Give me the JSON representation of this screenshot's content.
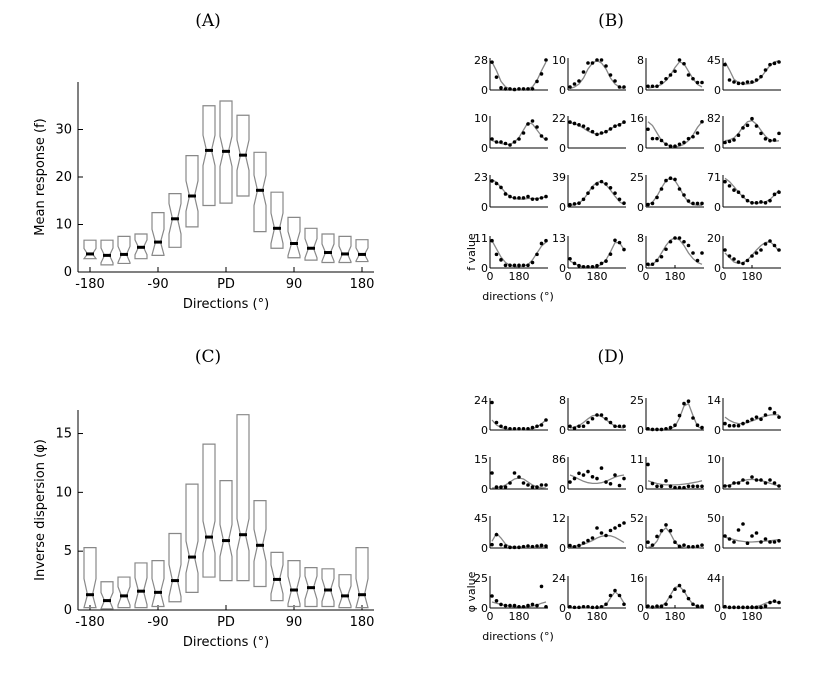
{
  "panels": {
    "A": {
      "label": "(A)",
      "ylabel": "Mean response (f)",
      "xlabel": "Directions (°)",
      "yticks": [
        "0",
        "10",
        "20",
        "30"
      ],
      "ylim": [
        0,
        40
      ]
    },
    "B": {
      "label": "(B)",
      "ylabel": "f value",
      "xlabel": "directions (°)"
    },
    "C": {
      "label": "(C)",
      "ylabel": "Inverse dispersion (φ)",
      "xlabel": "Directions (°)",
      "yticks": [
        "0",
        "5",
        "10",
        "15"
      ],
      "ylim": [
        0,
        17
      ]
    },
    "D": {
      "label": "(D)",
      "ylabel": "φ value",
      "xlabel": "directions (°)"
    }
  },
  "xticks": [
    "-180",
    "-90",
    "PD",
    "90",
    "180"
  ],
  "small_xticks": [
    "0",
    "180"
  ],
  "chart_data": [
    {
      "type": "box",
      "panel": "A",
      "ylabel": "Mean response (f)",
      "xlabel": "Directions (°)",
      "categories": [
        -180,
        -157.5,
        -135,
        -112.5,
        -90,
        -67.5,
        -45,
        -22.5,
        0,
        22.5,
        45,
        67.5,
        90,
        112.5,
        135,
        157.5,
        180
      ],
      "ylim": [
        0,
        40
      ],
      "medians": [
        3.8,
        3.5,
        3.7,
        5.2,
        6.3,
        11.2,
        16.0,
        25.6,
        25.4,
        24.6,
        17.2,
        9.2,
        6.0,
        5.0,
        4.1,
        3.8,
        3.7
      ],
      "q1": [
        2.8,
        1.5,
        1.8,
        2.8,
        3.5,
        5.2,
        9.5,
        14.0,
        14.5,
        16.0,
        8.5,
        5.0,
        3.0,
        2.5,
        2.0,
        2.0,
        2.2
      ],
      "q3": [
        6.7,
        6.7,
        7.5,
        8.0,
        12.5,
        16.5,
        24.5,
        35.0,
        36.0,
        33.0,
        25.2,
        16.8,
        11.5,
        9.2,
        8.0,
        7.5,
        6.8
      ]
    },
    {
      "type": "box",
      "panel": "C",
      "ylabel": "Inverse dispersion (φ)",
      "xlabel": "Directions (°)",
      "categories": [
        -180,
        -157.5,
        -135,
        -112.5,
        -90,
        -67.5,
        -45,
        -22.5,
        0,
        22.5,
        45,
        67.5,
        90,
        112.5,
        135,
        157.5,
        180
      ],
      "ylim": [
        0,
        17
      ],
      "medians": [
        1.3,
        0.8,
        1.2,
        1.6,
        1.5,
        2.5,
        4.5,
        6.2,
        5.9,
        6.4,
        5.5,
        2.6,
        1.7,
        1.9,
        1.7,
        1.2,
        1.3
      ],
      "q1": [
        0.2,
        0.1,
        0.2,
        0.2,
        0.3,
        0.7,
        1.5,
        2.8,
        2.5,
        2.5,
        2.0,
        0.8,
        0.3,
        0.3,
        0.3,
        0.2,
        0.2
      ],
      "q3": [
        5.3,
        2.4,
        2.8,
        4.0,
        4.2,
        6.5,
        10.7,
        14.1,
        11.0,
        16.6,
        9.3,
        4.9,
        4.2,
        3.6,
        3.5,
        3.0,
        5.3
      ]
    },
    {
      "type": "scatter",
      "panel": "B",
      "xlabel": "directions (°)",
      "ylabel": "f value",
      "xticks": [
        "0",
        "180"
      ],
      "subplots": [
        {
          "ymax": 28,
          "y": [
            26,
            12,
            2,
            1,
            1,
            0.5,
            1,
            1,
            1,
            1,
            8,
            15,
            28
          ],
          "fit": [
            26,
            18,
            8,
            3,
            1,
            0.5,
            0.5,
            0.5,
            1,
            3,
            9,
            18,
            26
          ]
        },
        {
          "ymax": 10,
          "y": [
            1,
            2,
            3,
            6,
            9,
            9,
            10,
            10,
            8,
            5,
            3,
            1,
            1
          ],
          "fit": [
            0.5,
            1,
            2,
            4,
            7,
            9,
            9.8,
            9,
            7,
            4,
            2,
            1,
            0.5
          ]
        },
        {
          "ymax": 8,
          "y": [
            1,
            1,
            1,
            2,
            3,
            4,
            5,
            8,
            7,
            4,
            3,
            2,
            2
          ],
          "fit": [
            0.5,
            0.7,
            1,
            1.5,
            2.5,
            4,
            6,
            7.5,
            7,
            5,
            3,
            1.5,
            0.8
          ]
        },
        {
          "ymax": 45,
          "y": [
            38,
            15,
            12,
            10,
            10,
            12,
            12,
            15,
            20,
            30,
            38,
            40,
            42
          ],
          "fit": [
            42,
            30,
            16,
            11,
            9,
            9,
            10,
            13,
            19,
            28,
            37,
            42,
            44
          ]
        },
        {
          "ymax": 10,
          "y": [
            3,
            2,
            2,
            1.5,
            1,
            2,
            3,
            5,
            8,
            9,
            7,
            4,
            3
          ],
          "fit": [
            2.5,
            2,
            1.5,
            1.2,
            1.2,
            2,
            3.5,
            6,
            8.5,
            8,
            6,
            4,
            2.5
          ]
        },
        {
          "ymax": 22,
          "y": [
            19,
            18,
            17,
            16,
            14,
            12,
            10,
            11,
            12,
            14,
            16,
            17,
            19
          ],
          "fit": [
            18.5,
            18,
            16.5,
            14.5,
            12.5,
            11,
            10,
            10.5,
            12,
            14,
            16,
            17.5,
            18.5
          ]
        },
        {
          "ymax": 16,
          "y": [
            10,
            5,
            5,
            4,
            2,
            1,
            1,
            2,
            3,
            5,
            6,
            8,
            14
          ],
          "fit": [
            14,
            12,
            8,
            4,
            2,
            1,
            0.5,
            1,
            2,
            4,
            7,
            11,
            14
          ]
        },
        {
          "ymax": 82,
          "y": [
            15,
            18,
            22,
            35,
            55,
            62,
            80,
            60,
            40,
            25,
            20,
            22,
            40
          ],
          "fit": [
            20,
            22,
            28,
            40,
            58,
            72,
            75,
            65,
            48,
            32,
            22,
            18,
            20
          ]
        },
        {
          "ymax": 23,
          "y": [
            20,
            18,
            15,
            10,
            8,
            7,
            7,
            7,
            8,
            6,
            6,
            7,
            8
          ],
          "fit": [
            21,
            19,
            15,
            11,
            8,
            6.5,
            6,
            6,
            6.5,
            6.5,
            6.5,
            7,
            8
          ]
        },
        {
          "ymax": 39,
          "y": [
            3,
            4,
            5,
            10,
            18,
            25,
            30,
            33,
            30,
            25,
            18,
            10,
            5
          ],
          "fit": [
            2,
            3,
            5,
            10,
            18,
            27,
            32,
            33,
            29,
            22,
            14,
            7,
            3
          ]
        },
        {
          "ymax": 25,
          "y": [
            2,
            3,
            8,
            15,
            22,
            24,
            23,
            15,
            10,
            5,
            3,
            3,
            3
          ],
          "fit": [
            2,
            4,
            9,
            16,
            22,
            24.5,
            22,
            16,
            9,
            4,
            2,
            1.5,
            1.5
          ]
        },
        {
          "ymax": 71,
          "y": [
            60,
            50,
            40,
            35,
            25,
            15,
            10,
            10,
            12,
            10,
            15,
            30,
            35
          ],
          "fit": [
            68,
            60,
            48,
            35,
            24,
            15,
            10,
            9,
            10,
            12,
            18,
            28,
            40
          ]
        },
        {
          "ymax": 11,
          "y": [
            10,
            5,
            3,
            1,
            1,
            1,
            1,
            1,
            1,
            2,
            5,
            9,
            10
          ],
          "fit": [
            10,
            7,
            4,
            2,
            1,
            0.5,
            0.5,
            0.7,
            1.2,
            3,
            5.5,
            8,
            9.5
          ]
        },
        {
          "ymax": 13,
          "y": [
            4,
            2,
            1,
            0.5,
            0.5,
            0.5,
            1,
            2,
            3,
            6,
            12,
            11,
            8
          ],
          "fit": [
            3,
            2,
            1,
            0.5,
            0.3,
            0.3,
            0.6,
            1.5,
            3.5,
            7,
            11,
            11,
            8
          ]
        },
        {
          "ymax": 8,
          "y": [
            1,
            1,
            2,
            3,
            5,
            7,
            8,
            8,
            7,
            6,
            4,
            2,
            4
          ],
          "fit": [
            0.5,
            1,
            2,
            4,
            6,
            7.5,
            8,
            7.5,
            6,
            4,
            2.5,
            1.5,
            1
          ]
        },
        {
          "ymax": 20,
          "y": [
            12,
            8,
            6,
            4,
            3,
            5,
            8,
            10,
            12,
            16,
            18,
            15,
            12
          ],
          "fit": [
            10,
            7,
            4,
            3,
            3.5,
            5.5,
            8.5,
            12,
            15,
            17,
            17.5,
            15,
            11
          ]
        }
      ]
    },
    {
      "type": "scatter",
      "panel": "D",
      "xlabel": "directions (°)",
      "ylabel": "φ value",
      "xticks": [
        "0",
        "180"
      ],
      "subplots": [
        {
          "ymax": 24,
          "y": [
            22,
            6,
            3,
            2,
            1,
            1,
            1,
            1,
            1,
            2,
            3,
            4,
            8
          ],
          "fit": [
            8,
            4,
            2,
            1,
            0.5,
            0.3,
            0.3,
            0.3,
            0.5,
            1,
            2.5,
            5,
            8
          ]
        },
        {
          "ymax": 8,
          "y": [
            1,
            0.5,
            1,
            1,
            2,
            3,
            4,
            4,
            3,
            2,
            1,
            1,
            1
          ],
          "fit": [
            0.5,
            0.8,
            1.2,
            2,
            3,
            3.8,
            4,
            3.6,
            2.8,
            1.8,
            1.1,
            0.7,
            0.5
          ]
        },
        {
          "ymax": 25,
          "y": [
            1,
            0.5,
            0.5,
            0.5,
            1,
            2,
            4,
            12,
            22,
            24,
            10,
            4,
            2
          ],
          "fit": [
            0.5,
            0.5,
            0.5,
            0.5,
            0.5,
            1,
            3,
            10,
            20,
            22,
            12,
            3,
            1
          ]
        },
        {
          "ymax": 14,
          "y": [
            3,
            2,
            2,
            2,
            3,
            4,
            5,
            6,
            5,
            7,
            10,
            8,
            6
          ],
          "fit": [
            6,
            4.5,
            3.5,
            3,
            3,
            3.5,
            4.2,
            5,
            5.8,
            6.5,
            7,
            7.2,
            7
          ]
        },
        {
          "ymax": 15,
          "y": [
            8,
            1,
            1,
            1,
            3,
            8,
            6,
            3,
            2,
            1,
            1,
            2,
            2
          ],
          "fit": [
            0.5,
            0.7,
            1,
            2,
            3.5,
            5,
            5.5,
            5,
            3.5,
            2,
            1,
            0.6,
            0.4
          ]
        },
        {
          "ymax": 86,
          "y": [
            20,
            30,
            45,
            40,
            50,
            35,
            30,
            60,
            20,
            15,
            40,
            10,
            30
          ],
          "fit": [
            40,
            35,
            28,
            22,
            18,
            16,
            16,
            18,
            22,
            28,
            34,
            38,
            40
          ]
        },
        {
          "ymax": 11,
          "y": [
            9,
            2,
            1,
            1,
            3,
            1,
            0.5,
            0.5,
            0.5,
            1,
            1,
            1,
            1
          ],
          "fit": [
            3,
            2.5,
            2,
            1.7,
            1.5,
            1.5,
            1.5,
            1.6,
            1.8,
            2,
            2.3,
            2.6,
            3
          ]
        },
        {
          "ymax": 10,
          "y": [
            1,
            1,
            2,
            2,
            3,
            2,
            4,
            3,
            3,
            2,
            3,
            2,
            1
          ],
          "fit": [
            1,
            1.3,
            1.8,
            2.3,
            2.8,
            3.1,
            3.2,
            3.1,
            2.8,
            2.4,
            1.9,
            1.4,
            1
          ]
        },
        {
          "ymax": 45,
          "y": [
            5,
            20,
            5,
            3,
            1,
            1,
            1,
            2,
            3,
            2,
            3,
            4,
            3
          ],
          "fit": [
            10,
            22,
            15,
            6,
            2,
            1,
            1,
            1,
            1,
            1,
            1,
            2,
            4
          ]
        },
        {
          "ymax": 12,
          "y": [
            1,
            0.5,
            1,
            2,
            3,
            4,
            8,
            6,
            5,
            7,
            8,
            9,
            10
          ],
          "fit": [
            0.5,
            0.7,
            1,
            1.5,
            2.2,
            3,
            4,
            4.7,
            5,
            4.9,
            4.3,
            3.3,
            2.2
          ]
        },
        {
          "ymax": 52,
          "y": [
            10,
            5,
            20,
            30,
            40,
            30,
            10,
            3,
            5,
            2,
            2,
            3,
            5
          ],
          "fit": [
            1,
            3,
            12,
            28,
            35,
            25,
            10,
            3,
            1,
            0.5,
            0.5,
            0.5,
            1
          ]
        },
        {
          "ymax": 50,
          "y": [
            20,
            15,
            10,
            30,
            40,
            8,
            20,
            25,
            10,
            15,
            10,
            10,
            12
          ],
          "fit": [
            18,
            16,
            14,
            12,
            11,
            10,
            10,
            10.5,
            11,
            11.5,
            12,
            13,
            14
          ]
        },
        {
          "ymax": 25,
          "y": [
            10,
            6,
            3,
            2,
            2,
            2,
            1,
            1,
            2,
            3,
            2,
            18,
            1
          ],
          "fit": [
            5,
            4,
            3,
            2,
            1.5,
            1,
            0.8,
            0.8,
            1,
            1.5,
            2.5,
            4,
            5
          ]
        },
        {
          "ymax": 24,
          "y": [
            1,
            0.5,
            0.5,
            1,
            1,
            0.5,
            0.5,
            1,
            3,
            10,
            14,
            10,
            3
          ],
          "fit": [
            0.3,
            0.3,
            0.3,
            0.3,
            0.3,
            0.3,
            0.4,
            0.8,
            2.5,
            8,
            13,
            10,
            4
          ]
        },
        {
          "ymax": 16,
          "y": [
            1,
            0.5,
            1,
            1,
            2,
            6,
            10,
            12,
            9,
            5,
            2,
            1,
            1
          ],
          "fit": [
            0.2,
            0.3,
            0.5,
            1,
            3,
            7,
            11,
            11.5,
            9,
            5,
            2,
            0.8,
            0.3
          ]
        },
        {
          "ymax": 44,
          "y": [
            2,
            1,
            1,
            1,
            1,
            1,
            1,
            1,
            1,
            3,
            8,
            10,
            8
          ],
          "fit": [
            0.5,
            0.5,
            0.5,
            0.5,
            0.5,
            0.6,
            1,
            2,
            4,
            7,
            9,
            9,
            8
          ]
        }
      ]
    }
  ]
}
